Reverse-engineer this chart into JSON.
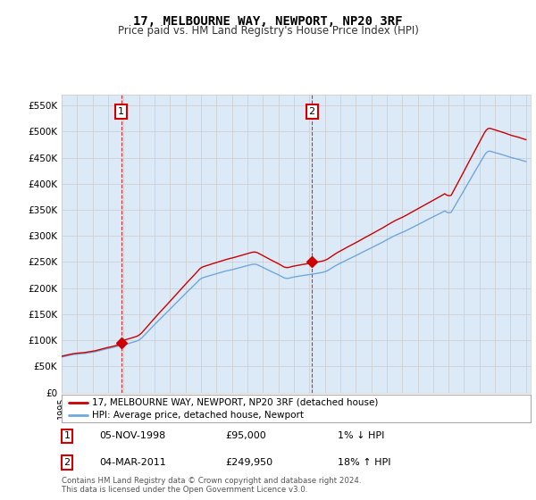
{
  "title": "17, MELBOURNE WAY, NEWPORT, NP20 3RF",
  "subtitle": "Price paid vs. HM Land Registry's House Price Index (HPI)",
  "ylabel_ticks": [
    "£0",
    "£50K",
    "£100K",
    "£150K",
    "£200K",
    "£250K",
    "£300K",
    "£350K",
    "£400K",
    "£450K",
    "£500K",
    "£550K"
  ],
  "ytick_values": [
    0,
    50000,
    100000,
    150000,
    200000,
    250000,
    300000,
    350000,
    400000,
    450000,
    500000,
    550000
  ],
  "ylim": [
    0,
    570000
  ],
  "sale1_t": 1998.85,
  "sale1_p": 95000,
  "sale2_t": 2011.17,
  "sale2_p": 249950,
  "legend1": "17, MELBOURNE WAY, NEWPORT, NP20 3RF (detached house)",
  "legend2": "HPI: Average price, detached house, Newport",
  "annotation1_date": "05-NOV-1998",
  "annotation1_price": "£95,000",
  "annotation1_hpi": "1% ↓ HPI",
  "annotation2_date": "04-MAR-2011",
  "annotation2_price": "£249,950",
  "annotation2_hpi": "18% ↑ HPI",
  "footer": "Contains HM Land Registry data © Crown copyright and database right 2024.\nThis data is licensed under the Open Government Licence v3.0.",
  "hpi_line_color": "#6fa8dc",
  "sale_line_color": "#cc0000",
  "dot_color": "#cc0000",
  "grid_color": "#cccccc",
  "fill_color": "#dce9f7",
  "background_color": "#ffffff",
  "label_box_color": "#cc0000",
  "vline_color": "#cc0000"
}
